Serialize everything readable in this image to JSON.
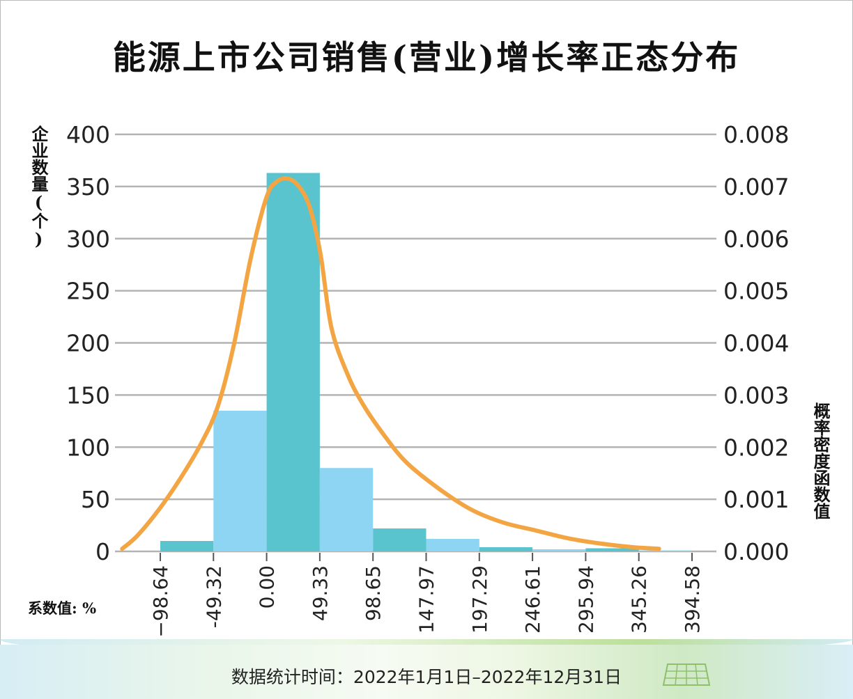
{
  "title": "能源上市公司销售(营业)增长率正态分布",
  "footer": "数据统计时间：2022年1月1日–2022年12月31日",
  "chart_data": {
    "type": "bar",
    "title": "能源上市公司销售(营业)增长率正态分布",
    "ylabel": "企业数量(个)",
    "y2label": "概率密度函数值",
    "xlabel": "系数值: %",
    "ylim": [
      0,
      400
    ],
    "y2lim": [
      0,
      0.008
    ],
    "yticks": [
      "400",
      "350",
      "300",
      "250",
      "200",
      "150",
      "100",
      "50",
      "0"
    ],
    "y2ticks": [
      "0.008",
      "0.007",
      "0.006",
      "0.005",
      "0.004",
      "0.003",
      "0.002",
      "0.001",
      "0.000"
    ],
    "bin_edges": [
      -98.64,
      -49.32,
      0.0,
      49.33,
      98.65,
      147.97,
      197.29,
      246.61,
      295.94,
      345.26,
      394.58
    ],
    "x_tick_labels": [
      "−98.64",
      "-49.32",
      "0.00",
      "49.33",
      "98.65",
      "147.97",
      "197.29",
      "246.61",
      "295.94",
      "345.26",
      "394.58"
    ],
    "values": [
      10,
      135,
      363,
      80,
      22,
      12,
      4,
      2,
      3,
      1
    ],
    "grid": true,
    "colors": {
      "bar_teal": "#59c3ce",
      "bar_light": "#8dd5f2",
      "curve": "#f4a543",
      "grid": "#b3b3b3"
    },
    "density_curve": {
      "x": [
        -134,
        -120,
        -100,
        -80,
        -60,
        -45,
        -30,
        -15,
        0,
        10,
        20,
        30,
        40,
        50,
        60,
        75,
        90,
        110,
        130,
        160,
        190,
        220,
        250,
        280,
        310,
        340,
        364
      ],
      "y": [
        5e-05,
        0.0003,
        0.0008,
        0.0014,
        0.0021,
        0.0028,
        0.004,
        0.0056,
        0.0068,
        0.0071,
        0.00715,
        0.007,
        0.0066,
        0.0057,
        0.0043,
        0.0034,
        0.0028,
        0.0022,
        0.0017,
        0.0012,
        0.0008,
        0.00055,
        0.0004,
        0.00025,
        0.00015,
        8e-05,
        5e-05
      ]
    }
  }
}
